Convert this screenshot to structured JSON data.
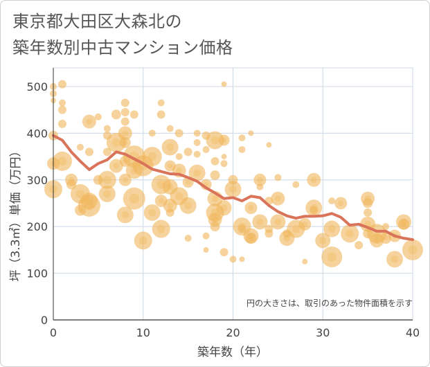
{
  "title": {
    "line1": "東京都大田区大森北の",
    "line2": "築年数別中古マンション価格"
  },
  "note": "円の大きさは、取引のあった物件面積を示す",
  "colors": {
    "bubble": "#f0b65a",
    "line": "#d9745a",
    "grid": "#cdd8e6"
  },
  "chart_data": {
    "type": "scatter",
    "xlabel": "築年数（年）",
    "ylabel": "坪（3.3㎡）単価（万円）",
    "xlim": [
      0,
      40
    ],
    "ylim": [
      0,
      540
    ],
    "xticks": [
      "0",
      "10",
      "20",
      "30",
      "40"
    ],
    "yticks": [
      "0",
      "100",
      "200",
      "300",
      "400",
      "500"
    ],
    "grid": true,
    "series": [
      {
        "type": "bubble",
        "points": [
          [
            0,
            500,
            5
          ],
          [
            0,
            485,
            5
          ],
          [
            0,
            470,
            4
          ],
          [
            0,
            395,
            7
          ],
          [
            0,
            335,
            9
          ],
          [
            0,
            280,
            13
          ],
          [
            1,
            505,
            6
          ],
          [
            1,
            465,
            5
          ],
          [
            1,
            450,
            6
          ],
          [
            1,
            420,
            6
          ],
          [
            1,
            340,
            14
          ],
          [
            2,
            300,
            9
          ],
          [
            2,
            290,
            7
          ],
          [
            3,
            370,
            5
          ],
          [
            3,
            270,
            14
          ],
          [
            3,
            235,
            8
          ],
          [
            4,
            425,
            10
          ],
          [
            4,
            360,
            6
          ],
          [
            4,
            245,
            16
          ],
          [
            4,
            255,
            12
          ],
          [
            5,
            435,
            5
          ],
          [
            5,
            300,
            7
          ],
          [
            6,
            395,
            6
          ],
          [
            6,
            410,
            5
          ],
          [
            6,
            360,
            6
          ],
          [
            6,
            300,
            13
          ],
          [
            6,
            270,
            12
          ],
          [
            7,
            440,
            7
          ],
          [
            7,
            380,
            14
          ],
          [
            7,
            330,
            10
          ],
          [
            8,
            465,
            6
          ],
          [
            8,
            445,
            6
          ],
          [
            8,
            425,
            6
          ],
          [
            8,
            400,
            10
          ],
          [
            8,
            380,
            8
          ],
          [
            8,
            340,
            8
          ],
          [
            8,
            300,
            9
          ],
          [
            8,
            225,
            12
          ],
          [
            9,
            440,
            6
          ],
          [
            9,
            350,
            16
          ],
          [
            9,
            320,
            12
          ],
          [
            9,
            260,
            16
          ],
          [
            10,
            330,
            15
          ],
          [
            10,
            170,
            13
          ],
          [
            11,
            400,
            5
          ],
          [
            11,
            350,
            14
          ],
          [
            11,
            230,
            12
          ],
          [
            12,
            465,
            5
          ],
          [
            12,
            440,
            6
          ],
          [
            12,
            290,
            14
          ],
          [
            12,
            255,
            9
          ],
          [
            12,
            195,
            13
          ],
          [
            13,
            410,
            5
          ],
          [
            13,
            370,
            12
          ],
          [
            13,
            330,
            8
          ],
          [
            13,
            285,
            11
          ],
          [
            13,
            245,
            10
          ],
          [
            13,
            230,
            6
          ],
          [
            14,
            400,
            6
          ],
          [
            14,
            350,
            5
          ],
          [
            14,
            320,
            10
          ],
          [
            14,
            265,
            13
          ],
          [
            15,
            360,
            6
          ],
          [
            15,
            295,
            8
          ],
          [
            15,
            245,
            12
          ],
          [
            15,
            175,
            5
          ],
          [
            16,
            400,
            5
          ],
          [
            16,
            380,
            5
          ],
          [
            16,
            355,
            5
          ],
          [
            16,
            315,
            12
          ],
          [
            17,
            395,
            6
          ],
          [
            17,
            365,
            5
          ],
          [
            17,
            290,
            8
          ],
          [
            17,
            180,
            5
          ],
          [
            17,
            150,
            4
          ],
          [
            18,
            385,
            13
          ],
          [
            18,
            340,
            6
          ],
          [
            18,
            310,
            7
          ],
          [
            18,
            260,
            11
          ],
          [
            18,
            230,
            13
          ],
          [
            18,
            215,
            10
          ],
          [
            18,
            200,
            7
          ],
          [
            19,
            505,
            4
          ],
          [
            19,
            385,
            8
          ],
          [
            19,
            350,
            4
          ],
          [
            19,
            335,
            5
          ],
          [
            19,
            240,
            11
          ],
          [
            19,
            145,
            6
          ],
          [
            20,
            300,
            7
          ],
          [
            20,
            280,
            12
          ],
          [
            20,
            130,
            5
          ],
          [
            21,
            390,
            5
          ],
          [
            21,
            365,
            5
          ],
          [
            21,
            200,
            13
          ],
          [
            21,
            195,
            6
          ],
          [
            21,
            130,
            4
          ],
          [
            22,
            400,
            4
          ],
          [
            22,
            240,
            9
          ],
          [
            22,
            180,
            11
          ],
          [
            22,
            175,
            8
          ],
          [
            23,
            300,
            9
          ],
          [
            23,
            285,
            5
          ],
          [
            23,
            210,
            11
          ],
          [
            24,
            375,
            4
          ],
          [
            24,
            255,
            6
          ],
          [
            24,
            195,
            6
          ],
          [
            24,
            185,
            6
          ],
          [
            25,
            305,
            5
          ],
          [
            25,
            260,
            10
          ],
          [
            25,
            210,
            11
          ],
          [
            26,
            175,
            11
          ],
          [
            26,
            185,
            6
          ],
          [
            27,
            290,
            5
          ],
          [
            27,
            195,
            13
          ],
          [
            28,
            205,
            9
          ],
          [
            28,
            125,
            4
          ],
          [
            29,
            300,
            10
          ],
          [
            29,
            240,
            12
          ],
          [
            29,
            235,
            6
          ],
          [
            30,
            170,
            11
          ],
          [
            31,
            255,
            5
          ],
          [
            31,
            195,
            12
          ],
          [
            31,
            135,
            15
          ],
          [
            32,
            250,
            9
          ],
          [
            33,
            185,
            13
          ],
          [
            34,
            160,
            6
          ],
          [
            35,
            260,
            10
          ],
          [
            35,
            250,
            7
          ],
          [
            35,
            230,
            6
          ],
          [
            35,
            205,
            11
          ],
          [
            35,
            185,
            7
          ],
          [
            36,
            185,
            14
          ],
          [
            36,
            170,
            10
          ],
          [
            37,
            200,
            5
          ],
          [
            37,
            175,
            8
          ],
          [
            38,
            180,
            9
          ],
          [
            38,
            130,
            12
          ],
          [
            39,
            210,
            11
          ],
          [
            39,
            205,
            8
          ],
          [
            40,
            150,
            15
          ]
        ]
      },
      {
        "type": "line",
        "points": [
          [
            0,
            395
          ],
          [
            1,
            385
          ],
          [
            2,
            360
          ],
          [
            3,
            340
          ],
          [
            4,
            322
          ],
          [
            5,
            335
          ],
          [
            6,
            343
          ],
          [
            7,
            360
          ],
          [
            8,
            355
          ],
          [
            9,
            345
          ],
          [
            10,
            335
          ],
          [
            11,
            323
          ],
          [
            12,
            318
          ],
          [
            13,
            313
          ],
          [
            14,
            312
          ],
          [
            15,
            305
          ],
          [
            16,
            297
          ],
          [
            17,
            283
          ],
          [
            18,
            272
          ],
          [
            19,
            260
          ],
          [
            20,
            262
          ],
          [
            21,
            255
          ],
          [
            22,
            265
          ],
          [
            23,
            262
          ],
          [
            24,
            245
          ],
          [
            25,
            232
          ],
          [
            26,
            223
          ],
          [
            27,
            218
          ],
          [
            28,
            222
          ],
          [
            29,
            222
          ],
          [
            30,
            223
          ],
          [
            31,
            228
          ],
          [
            32,
            220
          ],
          [
            33,
            203
          ],
          [
            34,
            205
          ],
          [
            35,
            198
          ],
          [
            36,
            190
          ],
          [
            37,
            190
          ],
          [
            38,
            180
          ],
          [
            39,
            175
          ],
          [
            40,
            172
          ]
        ]
      }
    ]
  }
}
